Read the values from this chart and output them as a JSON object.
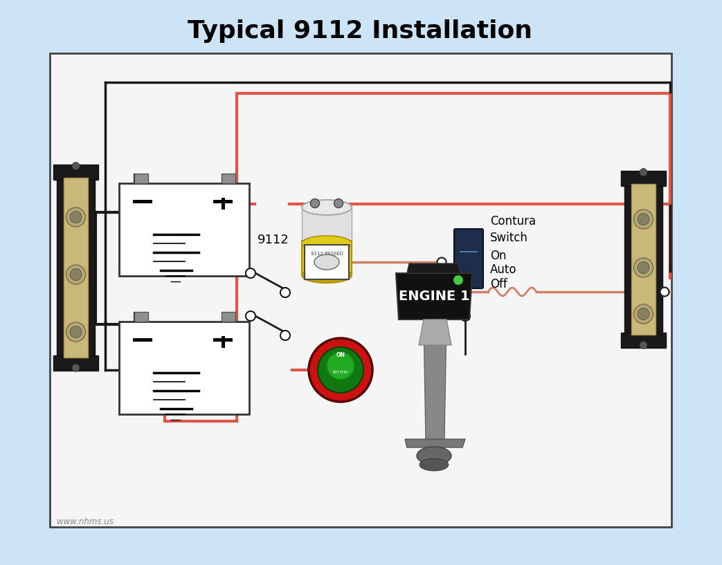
{
  "title": "Typical 9112 Installation",
  "title_fontsize": 26,
  "title_fontweight": "bold",
  "background_color": "#cce4f5",
  "diagram_bg": "#f5f5f5",
  "wire_red": "#e05545",
  "wire_black": "#1a1a1a",
  "wire_orange": "#d08060",
  "watermark": "www.nhms.us",
  "label_9112": "9112",
  "label_contura_line1": "Contura",
  "label_contura_line2": "Switch",
  "label_on": "On",
  "label_auto": "Auto",
  "label_off": "Off",
  "label_engine": "ENGINE 1"
}
